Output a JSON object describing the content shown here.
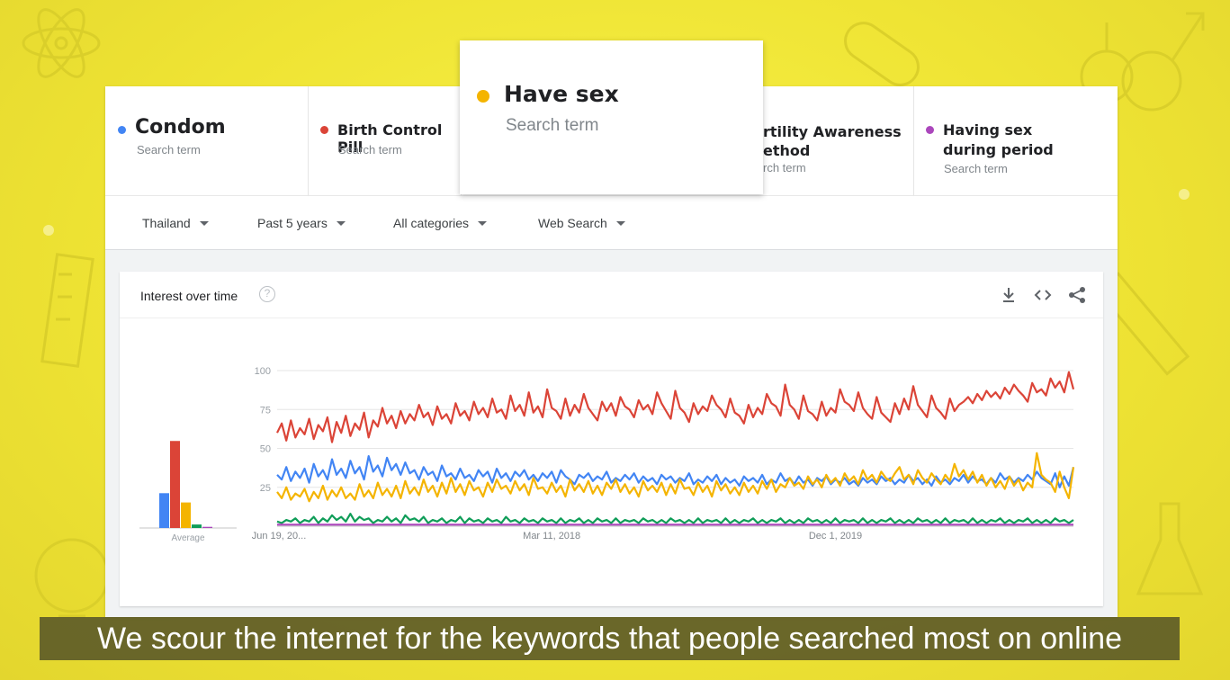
{
  "terms": [
    {
      "name": "Condom",
      "sub": "Search term",
      "color": "#4285f4"
    },
    {
      "name": "Birth Control Pill",
      "sub": "Search term",
      "color": "#db4437"
    },
    {
      "name": "Have sex",
      "sub": "Search term",
      "color": "#f4b400"
    },
    {
      "name": "rtility Awareness\nethod",
      "sub": "rch term",
      "color": "#0f9d58"
    },
    {
      "name": "Having sex\nduring period",
      "sub": "Search term",
      "color": "#ab47bc"
    }
  ],
  "filters": {
    "region": "Thailand",
    "time": "Past 5 years",
    "category": "All categories",
    "search_type": "Web Search"
  },
  "card": {
    "title": "Interest over time",
    "help": "?",
    "download_icon": "download-icon",
    "embed_icon": "embed-code-icon",
    "share_icon": "share-icon"
  },
  "caption": "We scour the internet for the keywords that people searched most on online",
  "chart_data": {
    "type": "line",
    "ylim": [
      0,
      100
    ],
    "yticks": [
      "100",
      "75",
      "50",
      "25"
    ],
    "xtick_labels": [
      "Jun 19, 20...",
      "Mar 11, 2018",
      "Dec 1, 2019"
    ],
    "average_label": "Average",
    "averages": [
      {
        "name": "Condom",
        "value": 30,
        "color": "#4285f4"
      },
      {
        "name": "Birth Control Pill",
        "value": 75,
        "color": "#db4437"
      },
      {
        "name": "Have sex",
        "value": 22,
        "color": "#f4b400"
      },
      {
        "name": "Fertility Awareness Method",
        "value": 3,
        "color": "#0f9d58"
      },
      {
        "name": "Having sex during period",
        "value": 1,
        "color": "#ab47bc"
      }
    ],
    "series": [
      {
        "name": "Birth Control Pill",
        "color": "#db4437",
        "values": [
          60,
          66,
          55,
          68,
          57,
          63,
          59,
          69,
          56,
          65,
          61,
          70,
          54,
          67,
          60,
          71,
          58,
          66,
          62,
          73,
          57,
          68,
          64,
          76,
          66,
          71,
          63,
          74,
          66,
          72,
          68,
          78,
          70,
          73,
          65,
          77,
          69,
          72,
          66,
          79,
          71,
          74,
          68,
          80,
          72,
          76,
          70,
          82,
          73,
          75,
          69,
          84,
          74,
          78,
          71,
          86,
          73,
          77,
          70,
          88,
          76,
          74,
          69,
          82,
          71,
          78,
          73,
          85,
          76,
          72,
          68,
          80,
          74,
          79,
          71,
          83,
          77,
          75,
          70,
          81,
          75,
          78,
          72,
          86,
          79,
          74,
          69,
          87,
          76,
          73,
          67,
          79,
          72,
          77,
          74,
          84,
          78,
          75,
          70,
          82,
          73,
          71,
          66,
          78,
          70,
          76,
          72,
          85,
          79,
          77,
          71,
          91,
          78,
          75,
          69,
          84,
          74,
          72,
          68,
          80,
          71,
          76,
          73,
          88,
          80,
          78,
          74,
          86,
          76,
          72,
          69,
          83,
          73,
          70,
          67,
          79,
          72,
          82,
          75,
          90,
          78,
          74,
          70,
          84,
          76,
          73,
          69,
          82,
          74,
          78,
          80,
          83,
          79,
          85,
          81,
          87,
          83,
          86,
          82,
          89,
          85,
          91,
          87,
          84,
          80,
          92,
          86,
          88,
          84,
          95,
          89,
          93,
          86,
          99,
          88
        ]
      },
      {
        "name": "Condom",
        "color": "#4285f4",
        "values": [
          33,
          30,
          38,
          29,
          35,
          31,
          37,
          28,
          40,
          32,
          36,
          30,
          43,
          33,
          37,
          31,
          42,
          34,
          38,
          30,
          45,
          35,
          39,
          32,
          44,
          36,
          40,
          33,
          41,
          34,
          36,
          30,
          38,
          33,
          35,
          29,
          39,
          32,
          34,
          30,
          37,
          31,
          33,
          29,
          36,
          32,
          35,
          28,
          37,
          31,
          34,
          29,
          35,
          32,
          36,
          30,
          33,
          29,
          34,
          31,
          35,
          28,
          36,
          32,
          30,
          27,
          33,
          31,
          34,
          29,
          32,
          30,
          35,
          28,
          31,
          29,
          33,
          30,
          34,
          28,
          32,
          29,
          31,
          27,
          33,
          30,
          32,
          28,
          31,
          29,
          34,
          27,
          30,
          28,
          32,
          29,
          33,
          27,
          31,
          28,
          30,
          26,
          32,
          29,
          31,
          28,
          33,
          27,
          30,
          28,
          34,
          29,
          31,
          27,
          32,
          28,
          30,
          26,
          31,
          29,
          32,
          27,
          30,
          28,
          31,
          27,
          29,
          26,
          31,
          28,
          30,
          27,
          32,
          29,
          31,
          27,
          30,
          28,
          33,
          29,
          31,
          27,
          30,
          26,
          32,
          28,
          30,
          27,
          31,
          29,
          33,
          28,
          32,
          29,
          30,
          27,
          31,
          28,
          34,
          30,
          32,
          28,
          31,
          29,
          33,
          30,
          35,
          31,
          29,
          27,
          34,
          25,
          32,
          26,
          38
        ]
      },
      {
        "name": "Have sex",
        "color": "#f4b400",
        "values": [
          22,
          18,
          25,
          17,
          21,
          19,
          24,
          16,
          22,
          18,
          26,
          17,
          23,
          19,
          25,
          18,
          21,
          17,
          27,
          19,
          23,
          18,
          28,
          20,
          24,
          19,
          26,
          18,
          29,
          21,
          25,
          20,
          30,
          22,
          26,
          19,
          28,
          21,
          31,
          22,
          27,
          20,
          29,
          23,
          25,
          19,
          28,
          22,
          30,
          24,
          26,
          21,
          29,
          23,
          27,
          20,
          31,
          24,
          25,
          21,
          28,
          22,
          26,
          19,
          30,
          23,
          27,
          22,
          29,
          21,
          26,
          20,
          28,
          24,
          30,
          22,
          27,
          21,
          25,
          19,
          29,
          23,
          26,
          22,
          28,
          20,
          27,
          21,
          30,
          24,
          25,
          20,
          28,
          22,
          26,
          19,
          29,
          23,
          27,
          21,
          25,
          20,
          28,
          22,
          26,
          21,
          29,
          24,
          30,
          22,
          27,
          25,
          31,
          26,
          28,
          24,
          32,
          27,
          30,
          25,
          33,
          28,
          31,
          26,
          34,
          29,
          32,
          27,
          36,
          30,
          33,
          28,
          35,
          31,
          29,
          34,
          38,
          30,
          33,
          27,
          36,
          31,
          28,
          34,
          30,
          27,
          33,
          29,
          40,
          32,
          36,
          30,
          35,
          28,
          33,
          26,
          31,
          25,
          29,
          24,
          32,
          26,
          30,
          23,
          28,
          25,
          47,
          33,
          30,
          28,
          22,
          35,
          25,
          18,
          38
        ]
      },
      {
        "name": "Fertility Awareness Method",
        "color": "#0f9d58",
        "values": [
          3,
          2,
          4,
          3,
          5,
          2,
          4,
          3,
          6,
          2,
          5,
          3,
          7,
          4,
          6,
          3,
          8,
          3,
          6,
          4,
          5,
          2,
          4,
          3,
          6,
          3,
          5,
          2,
          7,
          4,
          5,
          3,
          6,
          2,
          4,
          3,
          5,
          2,
          4,
          3,
          6,
          2,
          5,
          3,
          4,
          2,
          5,
          3,
          4,
          2,
          6,
          3,
          4,
          2,
          5,
          3,
          4,
          2,
          5,
          3,
          4,
          2,
          5,
          2,
          4,
          3,
          5,
          2,
          4,
          2,
          5,
          3,
          4,
          2,
          5,
          2,
          4,
          3,
          4,
          2,
          5,
          3,
          4,
          2,
          4,
          2,
          5,
          3,
          4,
          2,
          4,
          2,
          5,
          2,
          4,
          3,
          4,
          2,
          5,
          2,
          4,
          2,
          4,
          3,
          5,
          2,
          4,
          2,
          4,
          3,
          5,
          2,
          4,
          2,
          4,
          2,
          5,
          3,
          4,
          2,
          4,
          2,
          5,
          2,
          4,
          3,
          4,
          2,
          5,
          2,
          4,
          2,
          4,
          3,
          5,
          2,
          4,
          2,
          4,
          2,
          5,
          3,
          4,
          2,
          4,
          2,
          5,
          2,
          4,
          3,
          4,
          2,
          5,
          2,
          4,
          2,
          4,
          3,
          5,
          2,
          4,
          2,
          4,
          3,
          5,
          2,
          4,
          2,
          4,
          2,
          5,
          3,
          4,
          2,
          4
        ]
      },
      {
        "name": "Having sex during period",
        "color": "#ab47bc",
        "values": [
          1,
          1,
          1,
          1,
          1,
          1,
          1,
          1,
          1,
          1,
          1,
          1,
          1,
          1,
          1,
          1,
          1,
          1,
          1,
          1,
          1,
          1,
          1,
          1,
          1,
          1,
          1,
          1,
          1,
          1,
          1,
          1,
          1,
          1,
          1,
          1,
          1,
          1,
          1,
          1,
          1,
          1,
          1,
          1,
          1,
          1,
          1,
          1,
          1,
          1,
          1,
          1,
          1,
          1,
          1,
          1,
          1,
          1,
          1,
          1,
          1,
          1,
          1,
          1,
          1,
          1,
          1,
          1,
          1,
          1,
          1,
          1,
          1,
          1,
          1,
          1,
          1,
          1,
          1,
          1,
          1,
          1,
          1,
          1,
          1,
          1,
          1,
          1,
          1,
          1,
          1,
          1,
          1,
          1,
          1,
          1,
          1,
          1,
          1,
          1,
          1,
          1,
          1,
          1,
          1,
          1,
          1,
          1,
          1,
          1,
          1,
          1,
          1,
          1,
          1,
          1,
          1,
          1,
          1,
          1,
          1,
          1,
          1,
          1,
          1,
          1,
          1,
          1,
          1,
          1,
          1,
          1,
          1,
          1,
          1,
          1,
          1,
          1,
          1,
          1,
          1,
          1,
          1,
          1,
          1,
          1,
          1,
          1,
          1,
          1,
          1,
          1,
          1,
          1,
          1,
          1,
          1,
          1,
          1,
          1,
          1,
          1,
          1,
          1,
          1,
          1,
          1,
          1,
          1,
          1,
          1,
          1,
          1,
          1,
          1
        ]
      }
    ]
  }
}
